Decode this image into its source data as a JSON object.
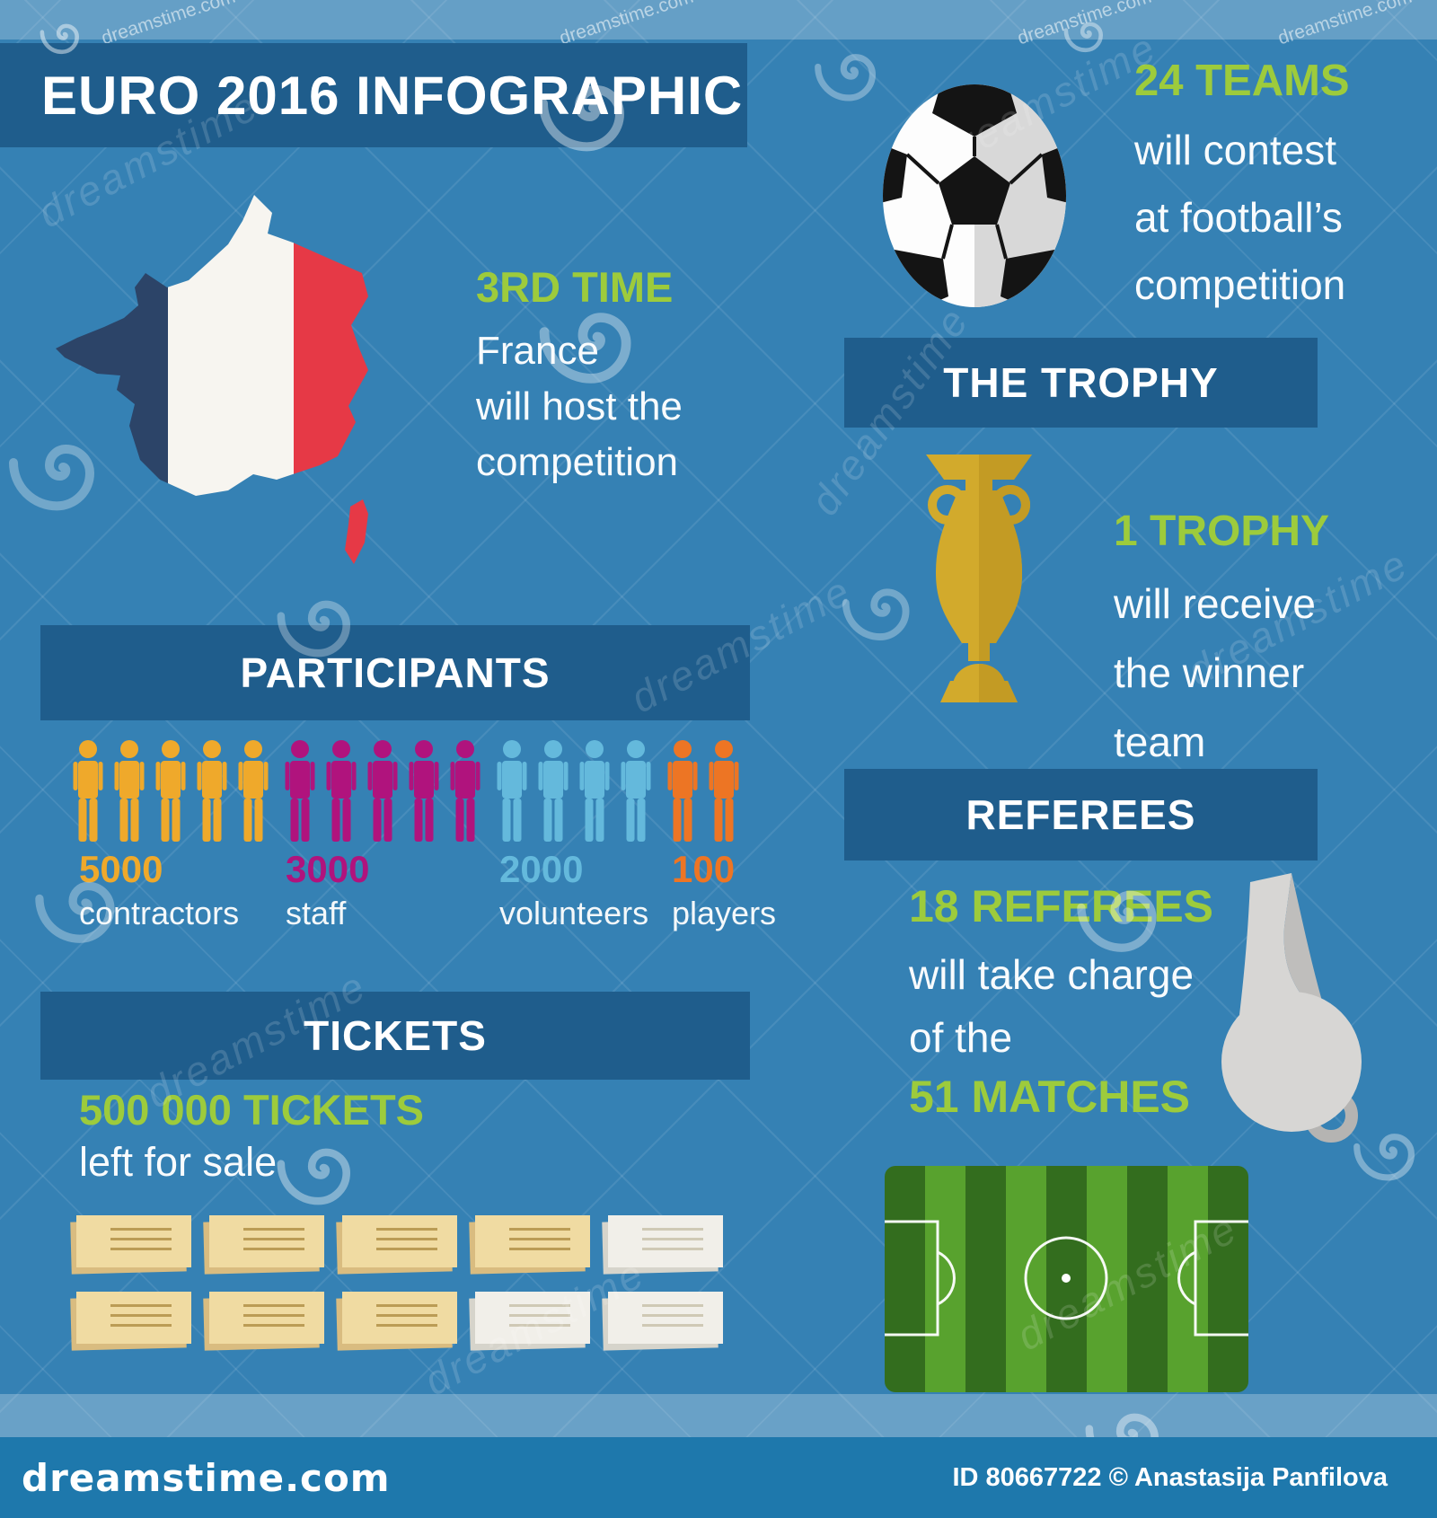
{
  "page": {
    "title": "EURO 2016 INFOGRAPHIC"
  },
  "host": {
    "headline": "3RD TIME",
    "lines": [
      "France",
      "will host the",
      "competition"
    ]
  },
  "teams": {
    "headline": "24 TEAMS",
    "lines": [
      "will contest",
      "at football’s",
      "competition"
    ]
  },
  "trophy": {
    "banner": "THE TROPHY",
    "headline": "1 TROPHY",
    "lines": [
      "will receive",
      "the winner",
      "team"
    ]
  },
  "participants": {
    "banner": "PARTICIPANTS",
    "groups": [
      {
        "count": "5000",
        "label": "contractors",
        "color": "#efa92b",
        "figures": 5
      },
      {
        "count": "3000",
        "label": "staff",
        "color": "#b0137d",
        "figures": 5
      },
      {
        "count": "2000",
        "label": "volunteers",
        "color": "#64b9dc",
        "figures": 4
      },
      {
        "count": "100",
        "label": "players",
        "color": "#ed7524",
        "figures": 2
      }
    ]
  },
  "tickets": {
    "banner": "TICKETS",
    "headline": "500 000 TICKETS",
    "subline": "left for sale",
    "rows": [
      [
        "tan",
        "tan",
        "tan",
        "tan",
        "light"
      ],
      [
        "tan",
        "tan",
        "tan",
        "light",
        "light"
      ]
    ]
  },
  "referees": {
    "banner": "REFEREES",
    "headline": "18 REFEREES",
    "lines": [
      "will take charge",
      "of the"
    ],
    "headline2": "51 MATCHES"
  },
  "footer": {
    "logo": "dreamstime.com",
    "credit": "ID 80667722 © Anastasija Panfilova"
  },
  "watermark": {
    "brand": "dreamstime",
    "site": "dreamstime.com"
  },
  "icons": [
    "france-map-icon",
    "soccer-ball-icon",
    "trophy-icon",
    "person-icon",
    "ticket-icon",
    "whistle-icon",
    "football-field-icon",
    "spiral-watermark-icon"
  ],
  "colors": {
    "background": "#3581b4",
    "banner": "#1f5d8c",
    "accent_green": "#9dcb3c",
    "text_white": "#f8fbfd",
    "gold": "#d2aa2c",
    "gold_dark": "#c39b24",
    "footer_bar": "#1e78ac",
    "field_dark": "#336d1e",
    "field_light": "#58a22e",
    "flag_navy": "#2c4468",
    "flag_white": "#f7f5f0",
    "flag_red": "#e63946",
    "ticket_tan": "#f0dba2",
    "ticket_light": "#f1efe9",
    "whistle_grey": "#d7d6d4"
  }
}
